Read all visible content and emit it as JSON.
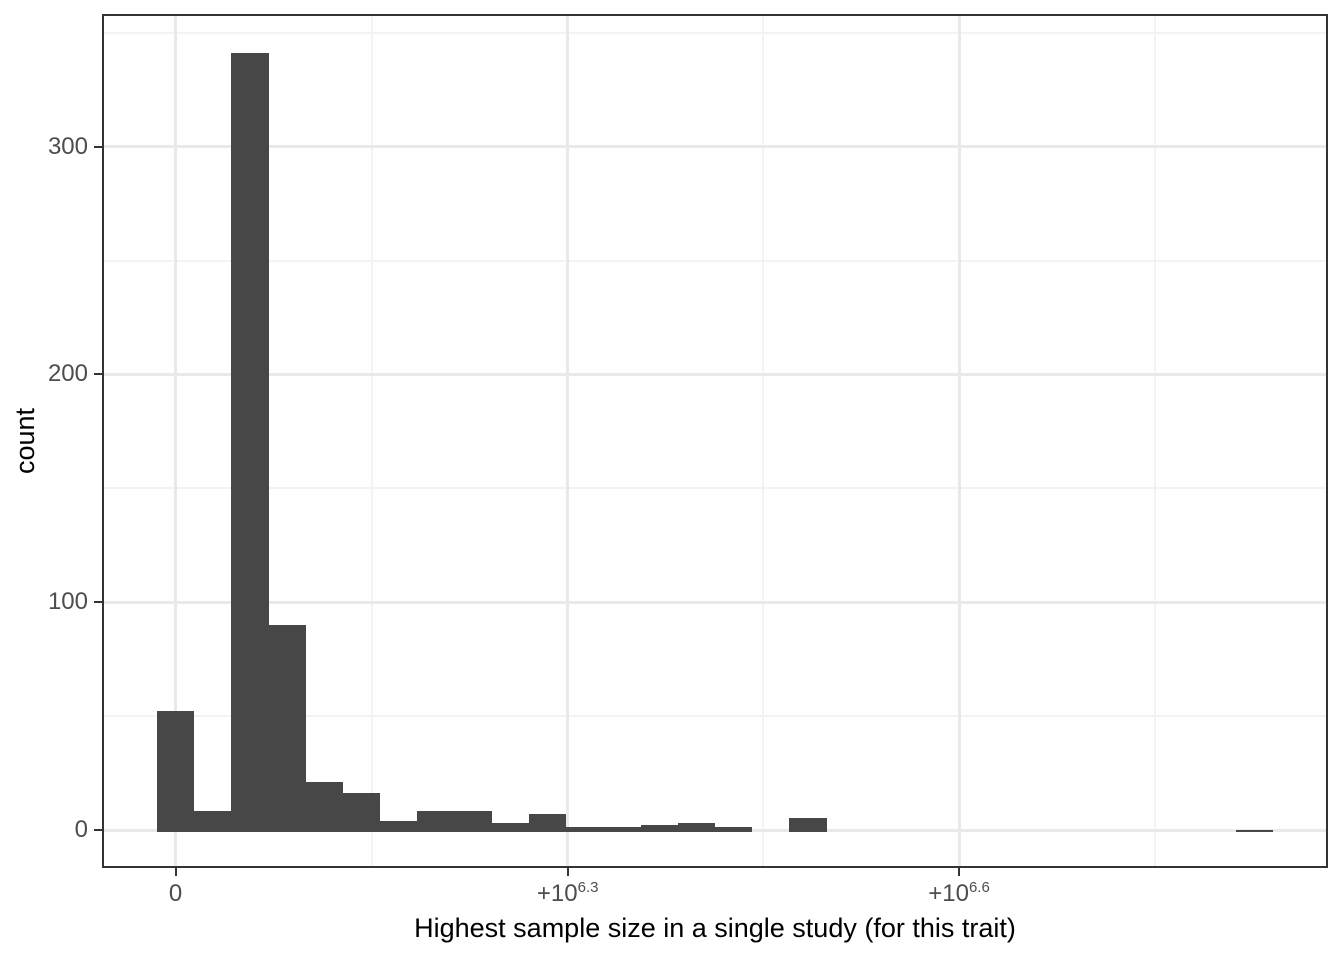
{
  "axes": {
    "x_title": "Highest sample size in a single study (for this trait)",
    "y_title": "count",
    "x_tick_labels": [
      {
        "base": "0",
        "sup": ""
      },
      {
        "base": "+10",
        "sup": "6.3"
      },
      {
        "base": "+10",
        "sup": "6.6"
      }
    ],
    "y_tick_labels": [
      "0",
      "100",
      "200",
      "300"
    ]
  },
  "chart_data": {
    "type": "histogram",
    "title": "",
    "xlabel": "Highest sample size in a single study (for this trait)",
    "ylabel": "count",
    "x_scale": "pseudo-log (signed log10) of sample size",
    "x_tick_labels": [
      "0",
      "+10^6.3",
      "+10^6.6"
    ],
    "x_tick_bin_positions": [
      0.5,
      11.04,
      21.56
    ],
    "y_ticks": [
      0,
      100,
      200,
      300
    ],
    "y_minor_ticks": [
      50,
      150,
      250,
      350
    ],
    "ylim": [
      0,
      358
    ],
    "n_bins": 30,
    "bin_counts": [
      53,
      9,
      342,
      91,
      22,
      17,
      5,
      9,
      9,
      4,
      8,
      2,
      2,
      3,
      4,
      2,
      0,
      6,
      0,
      0,
      0,
      0,
      0,
      0,
      0,
      0,
      0,
      0,
      0,
      1
    ],
    "grid": true,
    "legend": "none",
    "colors": {
      "bar_fill": "#474747",
      "panel_border": "#333333",
      "grid_major": "#e9e9e9",
      "grid_minor": "#f3f3f3",
      "tick_label": "#4d4d4d",
      "axis_title": "#000000",
      "background": "#ffffff"
    }
  }
}
